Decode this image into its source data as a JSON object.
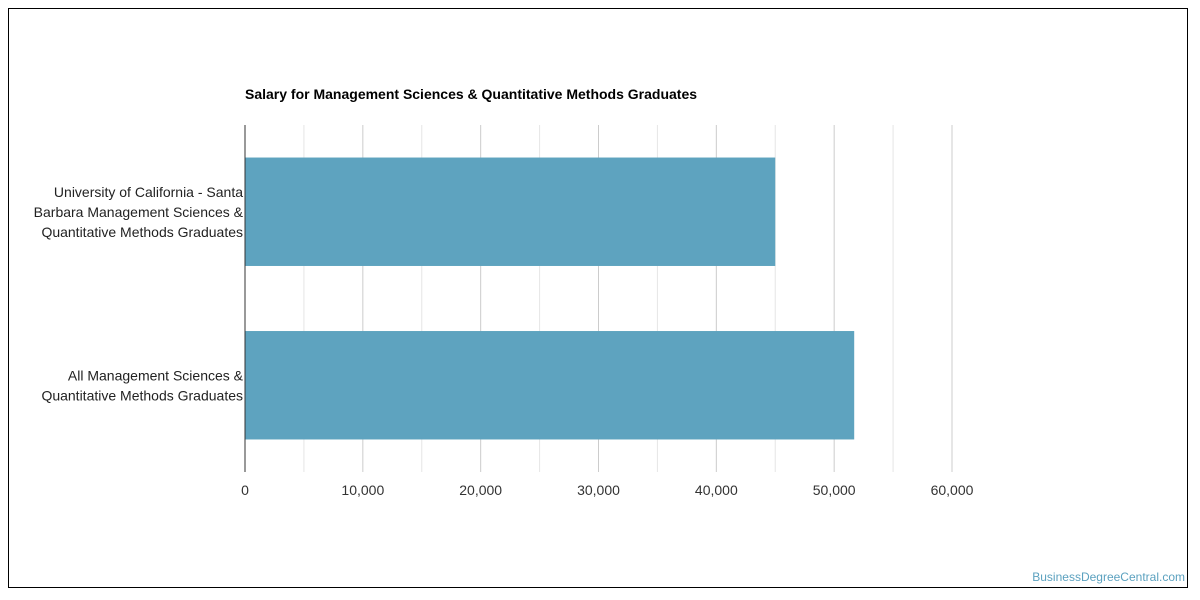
{
  "watermark": "BusinessDegreeCentral.com",
  "chart_data": {
    "type": "bar",
    "orientation": "horizontal",
    "title": "Salary for Management Sciences & Quantitative Methods Graduates",
    "categories": [
      [
        "University of California - Santa",
        "Barbara Management Sciences &",
        "Quantitative Methods Graduates"
      ],
      [
        "All Management Sciences &",
        "Quantitative Methods Graduates"
      ]
    ],
    "values": [
      45000,
      51700
    ],
    "xlim": [
      0,
      60000
    ],
    "ticks": [
      0,
      10000,
      20000,
      30000,
      40000,
      50000,
      60000
    ],
    "tick_labels": [
      "0",
      "10,000",
      "20,000",
      "30,000",
      "40,000",
      "50,000",
      "60,000"
    ],
    "grid": true,
    "bar_color": "#5ea3bf",
    "gridline_color": "#cccccc"
  }
}
